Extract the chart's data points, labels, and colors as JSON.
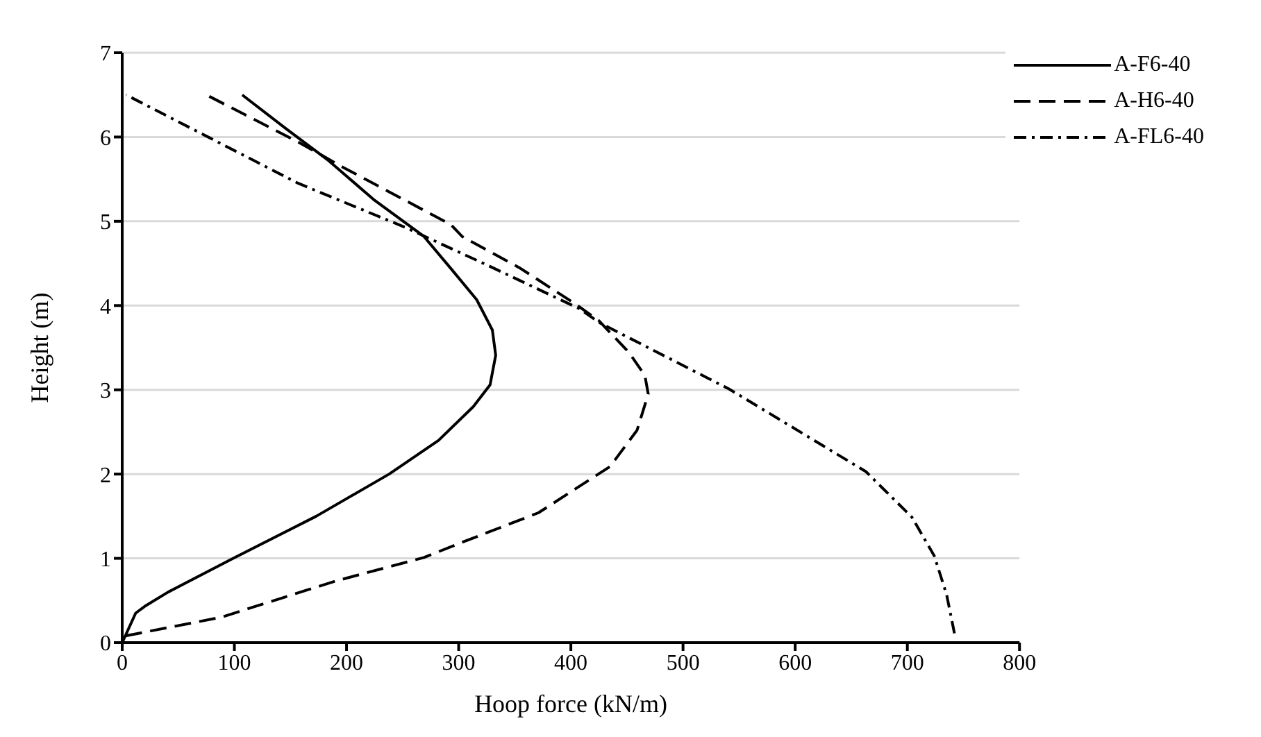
{
  "chart_data": {
    "type": "line",
    "xlabel": "Hoop force (kN/m)",
    "ylabel": "Height (m)",
    "xlim": [
      0,
      800
    ],
    "xticks": [
      0,
      100,
      200,
      300,
      400,
      500,
      600,
      700,
      800
    ],
    "ylim": [
      0,
      7
    ],
    "yticks": [
      0,
      1,
      2,
      3,
      4,
      5,
      6,
      7
    ],
    "grid": "y",
    "legend": "top right",
    "marker": "none",
    "series": [
      {
        "name": "A-F6-40",
        "color": "#000000",
        "line_style": "solid",
        "x": [
          0,
          12,
          20,
          41,
          99,
          173,
          238,
          282,
          313,
          328,
          333,
          330,
          316,
          293,
          269,
          224,
          184,
          146,
          107
        ],
        "values": [
          0,
          0.35,
          0.43,
          0.6,
          1.0,
          1.5,
          2.0,
          2.4,
          2.8,
          3.06,
          3.41,
          3.71,
          4.07,
          4.44,
          4.82,
          5.26,
          5.72,
          6.1,
          6.5
        ]
      },
      {
        "name": "A-H6-40",
        "color": "#000000",
        "line_style": "dashed",
        "x": [
          3,
          88,
          190,
          269,
          303,
          371,
          435,
          459,
          469,
          466,
          452,
          425,
          405,
          354,
          303,
          293,
          197,
          157,
          75
        ],
        "values": [
          0.08,
          0.3,
          0.73,
          1.01,
          1.19,
          1.54,
          2.09,
          2.52,
          2.95,
          3.17,
          3.44,
          3.82,
          4.01,
          4.45,
          4.82,
          4.96,
          5.64,
          5.94,
          6.5
        ]
      },
      {
        "name": "A-FL6-40",
        "color": "#000000",
        "line_style": "dashdot",
        "x": [
          742,
          735,
          724,
          704,
          663,
          541,
          425,
          408,
          327,
          252,
          157,
          78,
          3.5
        ],
        "values": [
          0.11,
          0.57,
          1.03,
          1.49,
          2.03,
          3.01,
          3.8,
          3.96,
          4.47,
          4.93,
          5.45,
          5.99,
          6.5
        ]
      }
    ]
  }
}
